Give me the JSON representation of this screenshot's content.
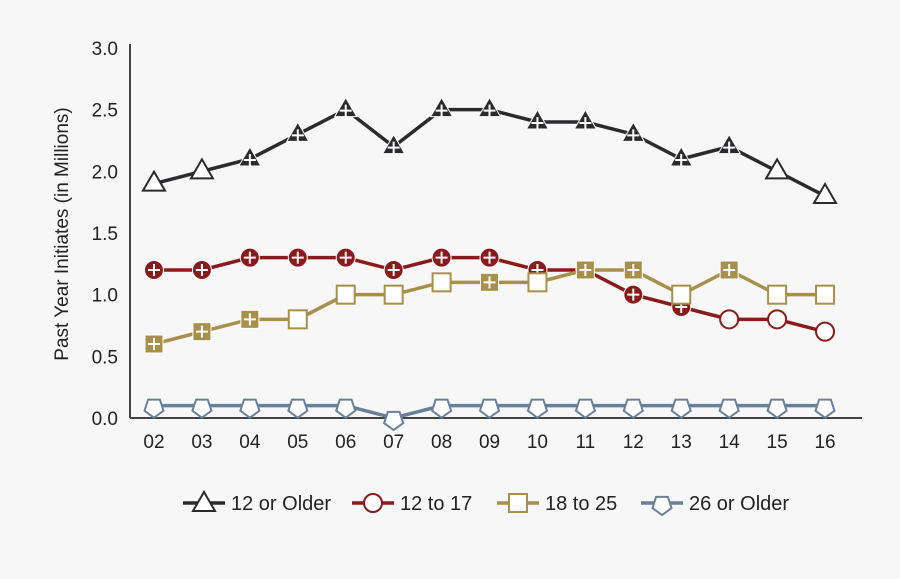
{
  "chart_data": {
    "type": "line",
    "title": "",
    "xlabel": "",
    "ylabel": "Past Year Initiates (in Millions)",
    "ylim": [
      0,
      3.0
    ],
    "yticks": [
      "0.0",
      "0.5",
      "1.0",
      "1.5",
      "2.0",
      "2.5",
      "3.0"
    ],
    "categories": [
      "02",
      "03",
      "04",
      "05",
      "06",
      "07",
      "08",
      "09",
      "10",
      "11",
      "12",
      "13",
      "14",
      "15",
      "16"
    ],
    "grid": false,
    "legend_position": "bottom",
    "significance_note_marker": "+",
    "series": [
      {
        "name": "12 or Older",
        "marker": "triangle",
        "color": "#2b2b2e",
        "values": [
          1.9,
          2.0,
          2.1,
          2.3,
          2.5,
          2.2,
          2.5,
          2.5,
          2.4,
          2.4,
          2.3,
          2.1,
          2.2,
          2.0,
          1.8
        ],
        "significant": [
          false,
          false,
          true,
          true,
          true,
          true,
          true,
          true,
          true,
          true,
          true,
          true,
          true,
          false,
          false
        ]
      },
      {
        "name": "12 to 17",
        "marker": "circle",
        "color": "#8b1a1a",
        "values": [
          1.2,
          1.2,
          1.3,
          1.3,
          1.3,
          1.2,
          1.3,
          1.3,
          1.2,
          1.2,
          1.0,
          0.9,
          0.8,
          0.8,
          0.7
        ],
        "significant": [
          true,
          true,
          true,
          true,
          true,
          true,
          true,
          true,
          true,
          true,
          true,
          true,
          false,
          false,
          false
        ]
      },
      {
        "name": "18 to 25",
        "marker": "square",
        "color": "#a88f4a",
        "values": [
          0.6,
          0.7,
          0.8,
          0.8,
          1.0,
          1.0,
          1.1,
          1.1,
          1.1,
          1.2,
          1.2,
          1.0,
          1.2,
          1.0,
          1.0
        ],
        "significant": [
          true,
          true,
          true,
          false,
          false,
          false,
          false,
          true,
          false,
          true,
          true,
          false,
          true,
          false,
          false
        ]
      },
      {
        "name": "26 or Older",
        "marker": "pentagon",
        "color": "#6a7f9a",
        "values": [
          0.1,
          0.1,
          0.1,
          0.1,
          0.1,
          0.0,
          0.1,
          0.1,
          0.1,
          0.1,
          0.1,
          0.1,
          0.1,
          0.1,
          0.1
        ],
        "significant": [
          false,
          false,
          false,
          false,
          false,
          false,
          false,
          false,
          false,
          false,
          false,
          false,
          false,
          false,
          false
        ]
      }
    ]
  }
}
